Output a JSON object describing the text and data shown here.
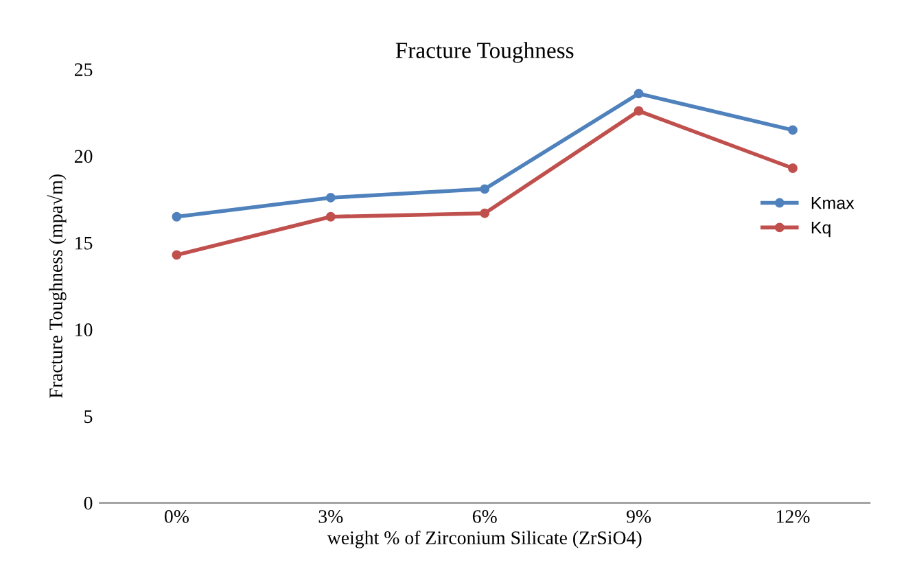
{
  "chart_data": {
    "type": "line",
    "title": "Fracture Toughness",
    "xlabel": "weight % of Zirconium Silicate (ZrSiO4)",
    "ylabel": "Fracture Toughness (mpa√m)",
    "categories": [
      "0%",
      "3%",
      "6%",
      "9%",
      "12%"
    ],
    "series": [
      {
        "name": "Kmax",
        "color": "#4f81bd",
        "values": [
          16.5,
          17.6,
          18.1,
          23.6,
          21.5
        ]
      },
      {
        "name": "Kq",
        "color": "#c0504d",
        "values": [
          14.3,
          16.5,
          16.7,
          22.6,
          19.3
        ]
      }
    ],
    "ylim": [
      0,
      25
    ],
    "yticks": [
      0,
      5,
      10,
      15,
      20,
      25
    ],
    "grid": false,
    "legend": "right",
    "marker": "circle",
    "line_style": "solid"
  }
}
